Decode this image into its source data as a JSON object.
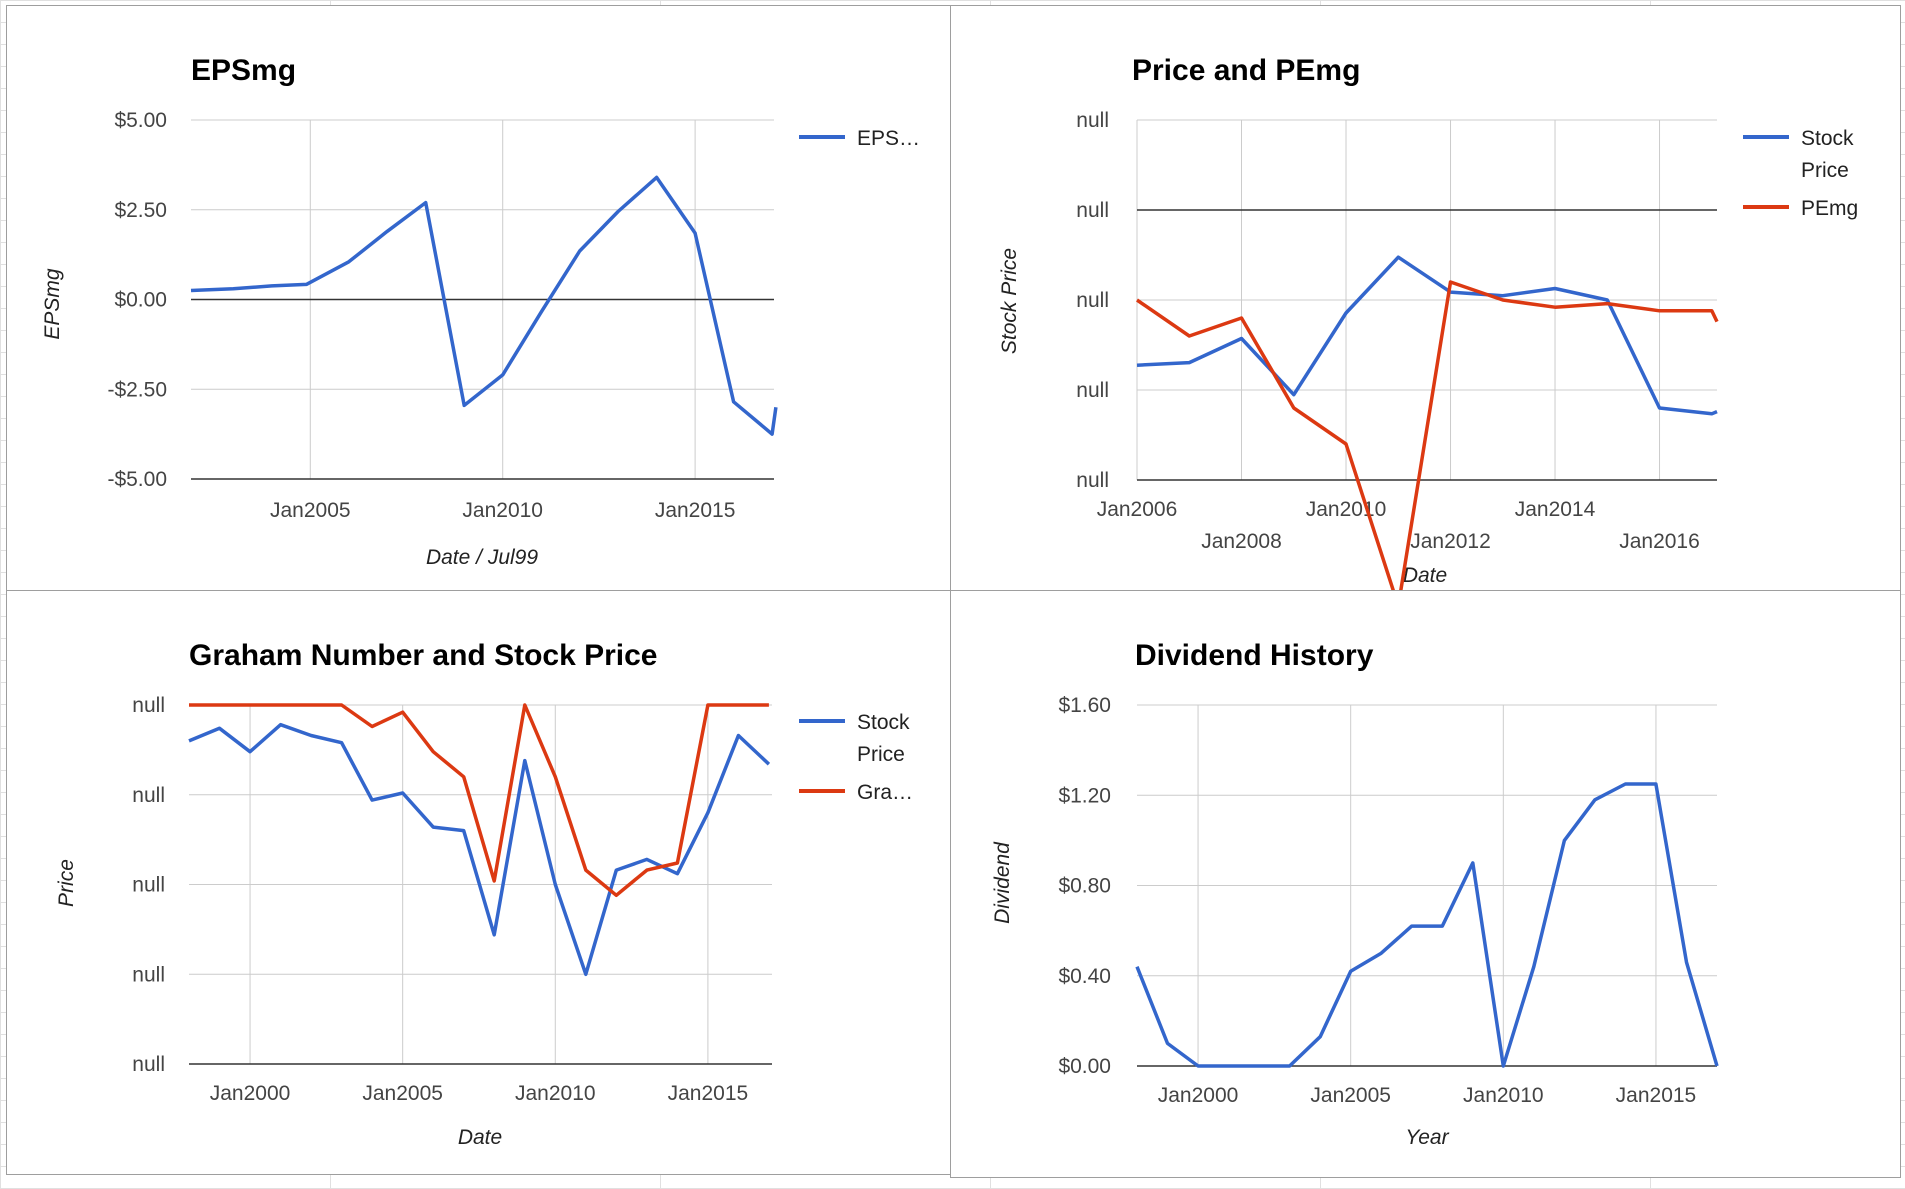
{
  "charts": [
    {
      "title": "EPSmg",
      "xlabel": "Date / Jul99",
      "ylabel": "EPSmg",
      "legend": [
        "EPS…"
      ]
    },
    {
      "title": "Price and PEmg",
      "xlabel": "Date",
      "ylabel": "Stock Price",
      "legend": [
        "Stock Price",
        "PEmg"
      ]
    },
    {
      "title": "Graham Number and Stock Price",
      "xlabel": "Date",
      "ylabel": "Price",
      "legend": [
        "Stock Price",
        "Gra…"
      ]
    },
    {
      "title": "Dividend History",
      "xlabel": "Year",
      "ylabel": "Dividend",
      "legend": []
    }
  ],
  "colors": {
    "blue": "#3366cc",
    "red": "#dc3912",
    "grid": "#cccccc",
    "baseline": "#333333",
    "text": "#444444"
  },
  "chart_data": [
    {
      "type": "line",
      "title": "EPSmg",
      "xlabel": "Date / Jul99",
      "ylabel": "EPSmg",
      "xlim": [
        2001.9,
        2017.05
      ],
      "ylim": [
        -5,
        5
      ],
      "x_ticks": [
        2005,
        2010,
        2015
      ],
      "x_tick_labels": [
        "Jan2005",
        "Jan2010",
        "Jan2015"
      ],
      "y_ticks": [
        5,
        2.5,
        0,
        -2.5,
        -5
      ],
      "y_tick_labels": [
        "$5.00",
        "$2.50",
        "$0.00",
        "-$2.50",
        "-$5.00"
      ],
      "grid": true,
      "legend_position": "right",
      "series": [
        {
          "name": "EPS…",
          "color": "#3366cc",
          "x": [
            2001.9,
            2003,
            2004,
            2004.9,
            2006,
            2007,
            2008,
            2009,
            2010,
            2011,
            2012,
            2013,
            2014,
            2015,
            2016,
            2017,
            2017.1
          ],
          "values": [
            0.25,
            0.3,
            0.38,
            0.42,
            1.05,
            1.9,
            2.7,
            -2.95,
            -2.1,
            -0.35,
            1.35,
            2.45,
            3.4,
            1.85,
            -2.85,
            -3.75,
            -3.0
          ]
        }
      ]
    },
    {
      "type": "line",
      "title": "Price and PEmg",
      "xlabel": "Date",
      "ylabel": "Stock Price",
      "xlim": [
        2006,
        2017.1
      ],
      "y_tick_labels": [
        "null",
        "null",
        "null",
        "null",
        "null"
      ],
      "x_ticks": [
        2006,
        2008,
        2010,
        2012,
        2014,
        2016
      ],
      "x_tick_labels": [
        "Jan2006",
        "Jan2008",
        "Jan2010",
        "Jan2012",
        "Jan2014",
        "Jan2016"
      ],
      "grid": true,
      "legend_position": "right",
      "series": [
        {
          "name": "Stock Price",
          "color": "#3366cc",
          "x": [
            2006,
            2007,
            2008,
            2009,
            2010,
            2011,
            2012,
            2013,
            2014,
            2015,
            2016,
            2017,
            2017.1
          ],
          "values": [
            0.681,
            0.674,
            0.607,
            0.763,
            0.536,
            0.381,
            0.478,
            0.488,
            0.468,
            0.5,
            0.8,
            0.816,
            0.81
          ]
        },
        {
          "name": "PEmg",
          "color": "#dc3912",
          "x": [
            2006,
            2007,
            2008,
            2009,
            2010,
            2011,
            2012,
            2013,
            2014,
            2015,
            2016,
            2017,
            2017.1
          ],
          "values": [
            0.5,
            0.6,
            0.55,
            0.8,
            0.9,
            1.35,
            0.45,
            0.5,
            0.52,
            0.51,
            0.53,
            0.53,
            0.56
          ]
        }
      ]
    },
    {
      "type": "line",
      "title": "Graham Number and Stock Price",
      "xlabel": "Date",
      "ylabel": "Price",
      "xlim": [
        1998,
        2017.1
      ],
      "y_tick_labels": [
        "null",
        "null",
        "null",
        "null",
        "null"
      ],
      "x_ticks": [
        2000,
        2005,
        2010,
        2015
      ],
      "x_tick_labels": [
        "Jan2000",
        "Jan2005",
        "Jan2010",
        "Jan2015"
      ],
      "grid": true,
      "legend_position": "right",
      "series": [
        {
          "name": "Stock Price",
          "color": "#3366cc",
          "x": [
            1998,
            1999,
            2000,
            2001,
            2002,
            2003,
            2004,
            2005,
            2006,
            2007,
            2008,
            2009,
            2010,
            2011,
            2012,
            2013,
            2014,
            2015,
            2016,
            2017
          ],
          "values": [
            0.1,
            0.065,
            0.13,
            0.055,
            0.085,
            0.105,
            0.265,
            0.245,
            0.34,
            0.35,
            0.64,
            0.155,
            0.5,
            0.75,
            0.46,
            0.43,
            0.47,
            0.3,
            0.085,
            0.165
          ]
        },
        {
          "name": "Gra…",
          "color": "#dc3912",
          "x": [
            1998,
            1999,
            2000,
            2001,
            2002,
            2003,
            2004,
            2005,
            2006,
            2007,
            2008,
            2009,
            2010,
            2011,
            2012,
            2013,
            2014,
            2015,
            2016,
            2017
          ],
          "values": [
            0,
            0,
            0,
            0,
            0,
            0,
            0.06,
            0.02,
            0.13,
            0.2,
            0.49,
            0,
            0.2,
            0.46,
            0.53,
            0.46,
            0.44,
            0,
            0,
            0
          ]
        }
      ]
    },
    {
      "type": "line",
      "title": "Dividend History",
      "xlabel": "Year",
      "ylabel": "Dividend",
      "xlim": [
        1998,
        2017
      ],
      "ylim": [
        0,
        1.6
      ],
      "x_ticks": [
        2000,
        2005,
        2010,
        2015
      ],
      "x_tick_labels": [
        "Jan2000",
        "Jan2005",
        "Jan2010",
        "Jan2015"
      ],
      "y_ticks": [
        1.6,
        1.2,
        0.8,
        0.4,
        0
      ],
      "y_tick_labels": [
        "$1.60",
        "$1.20",
        "$0.80",
        "$0.40",
        "$0.00"
      ],
      "grid": true,
      "legend_position": "none",
      "series": [
        {
          "color": "#3366cc",
          "x": [
            1998,
            1999,
            2000,
            2001,
            2002,
            2003,
            2004,
            2005,
            2006,
            2007,
            2008,
            2009,
            2010,
            2011,
            2012,
            2013,
            2014,
            2015,
            2016,
            2017
          ],
          "values": [
            0.44,
            0.1,
            0,
            0,
            0,
            0,
            0.13,
            0.42,
            0.5,
            0.62,
            0.62,
            0.9,
            0,
            0.44,
            1.0,
            1.18,
            1.25,
            1.25,
            0.46,
            0
          ]
        }
      ]
    }
  ]
}
